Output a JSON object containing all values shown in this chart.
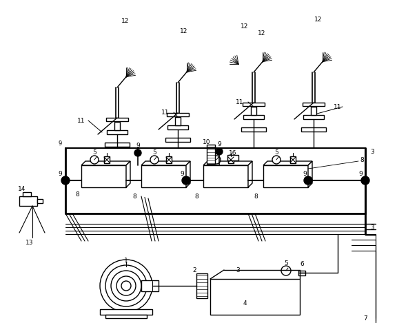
{
  "bg_color": "#ffffff",
  "line_color": "#000000",
  "lw": 1.0,
  "lw2": 1.5,
  "fig_width": 5.76,
  "fig_height": 4.69,
  "dpi": 100
}
